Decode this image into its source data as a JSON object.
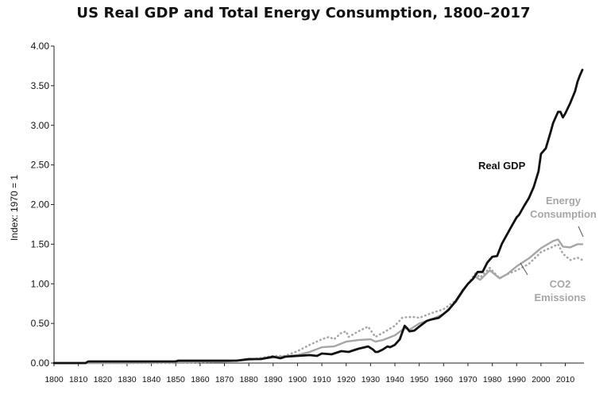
{
  "chart_data": {
    "type": "line",
    "title": "US Real GDP and Total Energy Consumption, 1800–2017",
    "ylabel": "Index: 1970 = 1",
    "xlabel": "",
    "xlim": [
      1800,
      2017
    ],
    "ylim": [
      0,
      4
    ],
    "x_ticks": [
      1800,
      1810,
      1820,
      1830,
      1840,
      1850,
      1860,
      1870,
      1880,
      1890,
      1900,
      1910,
      1920,
      1930,
      1940,
      1950,
      1960,
      1970,
      1980,
      1990,
      2000,
      2010
    ],
    "y_ticks": [
      "0.00",
      "0.50",
      "1.00",
      "1.50",
      "2.00",
      "2.50",
      "3.00",
      "3.50",
      "4.00"
    ],
    "grid": false,
    "legend": "inline labels",
    "series": [
      {
        "name": "Real GDP",
        "label_lines": [
          "Real GDP"
        ],
        "color": "#111111",
        "style": "solid",
        "points": [
          [
            1800,
            0.0
          ],
          [
            1813,
            0.0
          ],
          [
            1814,
            0.02
          ],
          [
            1830,
            0.02
          ],
          [
            1850,
            0.02
          ],
          [
            1851,
            0.03
          ],
          [
            1860,
            0.03
          ],
          [
            1870,
            0.03
          ],
          [
            1875,
            0.03
          ],
          [
            1880,
            0.05
          ],
          [
            1885,
            0.05
          ],
          [
            1890,
            0.08
          ],
          [
            1893,
            0.06
          ],
          [
            1895,
            0.08
          ],
          [
            1900,
            0.09
          ],
          [
            1905,
            0.1
          ],
          [
            1908,
            0.09
          ],
          [
            1910,
            0.12
          ],
          [
            1914,
            0.11
          ],
          [
            1918,
            0.15
          ],
          [
            1921,
            0.14
          ],
          [
            1925,
            0.18
          ],
          [
            1929,
            0.21
          ],
          [
            1930,
            0.19
          ],
          [
            1931,
            0.17
          ],
          [
            1932,
            0.14
          ],
          [
            1933,
            0.14
          ],
          [
            1935,
            0.17
          ],
          [
            1937,
            0.21
          ],
          [
            1938,
            0.2
          ],
          [
            1940,
            0.23
          ],
          [
            1942,
            0.3
          ],
          [
            1944,
            0.47
          ],
          [
            1945,
            0.44
          ],
          [
            1946,
            0.4
          ],
          [
            1948,
            0.41
          ],
          [
            1950,
            0.46
          ],
          [
            1953,
            0.53
          ],
          [
            1955,
            0.55
          ],
          [
            1958,
            0.57
          ],
          [
            1960,
            0.62
          ],
          [
            1962,
            0.67
          ],
          [
            1965,
            0.78
          ],
          [
            1968,
            0.92
          ],
          [
            1970,
            1.0
          ],
          [
            1972,
            1.06
          ],
          [
            1974,
            1.15
          ],
          [
            1976,
            1.15
          ],
          [
            1978,
            1.27
          ],
          [
            1980,
            1.34
          ],
          [
            1982,
            1.35
          ],
          [
            1984,
            1.51
          ],
          [
            1986,
            1.62
          ],
          [
            1988,
            1.73
          ],
          [
            1990,
            1.84
          ],
          [
            1991,
            1.87
          ],
          [
            1993,
            1.98
          ],
          [
            1995,
            2.08
          ],
          [
            1997,
            2.22
          ],
          [
            1999,
            2.42
          ],
          [
            2000,
            2.64
          ],
          [
            2002,
            2.71
          ],
          [
            2004,
            2.92
          ],
          [
            2005,
            3.03
          ],
          [
            2007,
            3.17
          ],
          [
            2008,
            3.17
          ],
          [
            2009,
            3.1
          ],
          [
            2010,
            3.15
          ],
          [
            2012,
            3.28
          ],
          [
            2014,
            3.43
          ],
          [
            2015,
            3.55
          ],
          [
            2016,
            3.63
          ],
          [
            2017,
            3.7
          ]
        ]
      },
      {
        "name": "Energy Consumption",
        "label_lines": [
          "Energy",
          "Consumption"
        ],
        "color": "#a6a6a6",
        "style": "solid",
        "points": [
          [
            1800,
            0.0
          ],
          [
            1830,
            0.0
          ],
          [
            1850,
            0.01
          ],
          [
            1870,
            0.02
          ],
          [
            1880,
            0.04
          ],
          [
            1890,
            0.07
          ],
          [
            1900,
            0.1
          ],
          [
            1905,
            0.14
          ],
          [
            1910,
            0.2
          ],
          [
            1915,
            0.21
          ],
          [
            1920,
            0.27
          ],
          [
            1925,
            0.29
          ],
          [
            1930,
            0.3
          ],
          [
            1932,
            0.27
          ],
          [
            1935,
            0.29
          ],
          [
            1940,
            0.35
          ],
          [
            1944,
            0.44
          ],
          [
            1946,
            0.42
          ],
          [
            1950,
            0.5
          ],
          [
            1955,
            0.55
          ],
          [
            1960,
            0.62
          ],
          [
            1965,
            0.77
          ],
          [
            1970,
            1.0
          ],
          [
            1973,
            1.09
          ],
          [
            1975,
            1.05
          ],
          [
            1979,
            1.17
          ],
          [
            1983,
            1.07
          ],
          [
            1986,
            1.12
          ],
          [
            1990,
            1.22
          ],
          [
            1995,
            1.32
          ],
          [
            2000,
            1.45
          ],
          [
            2005,
            1.54
          ],
          [
            2007,
            1.56
          ],
          [
            2009,
            1.47
          ],
          [
            2012,
            1.46
          ],
          [
            2015,
            1.5
          ],
          [
            2017,
            1.5
          ]
        ]
      },
      {
        "name": "CO2 Emissions",
        "label_lines": [
          "CO2",
          "Emissions"
        ],
        "color": "#a6a6a6",
        "style": "dotted",
        "points": [
          [
            1800,
            0.0
          ],
          [
            1830,
            0.0
          ],
          [
            1850,
            0.0
          ],
          [
            1870,
            0.02
          ],
          [
            1880,
            0.04
          ],
          [
            1890,
            0.09
          ],
          [
            1895,
            0.09
          ],
          [
            1900,
            0.15
          ],
          [
            1905,
            0.23
          ],
          [
            1910,
            0.3
          ],
          [
            1913,
            0.33
          ],
          [
            1915,
            0.3
          ],
          [
            1918,
            0.38
          ],
          [
            1920,
            0.4
          ],
          [
            1921,
            0.33
          ],
          [
            1925,
            0.4
          ],
          [
            1929,
            0.46
          ],
          [
            1932,
            0.33
          ],
          [
            1935,
            0.38
          ],
          [
            1940,
            0.47
          ],
          [
            1943,
            0.57
          ],
          [
            1945,
            0.58
          ],
          [
            1948,
            0.58
          ],
          [
            1950,
            0.57
          ],
          [
            1955,
            0.63
          ],
          [
            1960,
            0.68
          ],
          [
            1965,
            0.79
          ],
          [
            1970,
            1.0
          ],
          [
            1973,
            1.13
          ],
          [
            1975,
            1.08
          ],
          [
            1979,
            1.2
          ],
          [
            1983,
            1.07
          ],
          [
            1986,
            1.12
          ],
          [
            1990,
            1.17
          ],
          [
            1995,
            1.25
          ],
          [
            2000,
            1.4
          ],
          [
            2005,
            1.47
          ],
          [
            2007,
            1.5
          ],
          [
            2009,
            1.38
          ],
          [
            2012,
            1.3
          ],
          [
            2015,
            1.33
          ],
          [
            2017,
            1.3
          ]
        ]
      }
    ]
  }
}
